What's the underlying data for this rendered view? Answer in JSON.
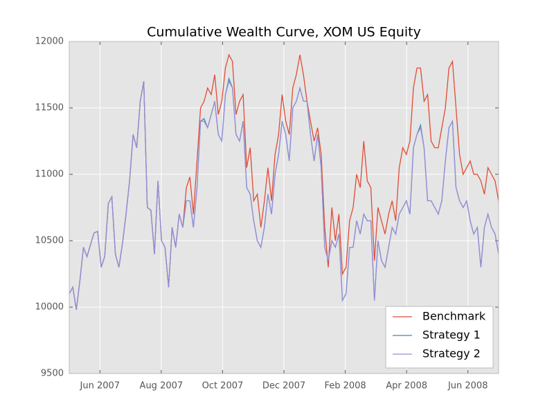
{
  "chart_data": {
    "type": "line",
    "title": "Cumulative Wealth Curve, XOM US Equity",
    "xlim": [
      "2007-05",
      "2008-07"
    ],
    "xticks": [
      {
        "value": "2007-06",
        "label": "Jun 2007"
      },
      {
        "value": "2007-08",
        "label": "Aug 2007"
      },
      {
        "value": "2007-10",
        "label": "Oct 2007"
      },
      {
        "value": "2007-12",
        "label": "Dec 2007"
      },
      {
        "value": "2008-02",
        "label": "Feb 2008"
      },
      {
        "value": "2008-04",
        "label": "Apr 2008"
      },
      {
        "value": "2008-06",
        "label": "Jun 2008"
      }
    ],
    "ylim": [
      9500,
      12000
    ],
    "yticks": [
      9500,
      10000,
      10500,
      11000,
      11500,
      12000
    ],
    "grid": true,
    "legend": "lower right",
    "series": [
      {
        "name": "Benchmark",
        "color": "#E24A33",
        "values": [
          10100,
          10150,
          9980,
          10200,
          10450,
          10380,
          10470,
          10560,
          10570,
          10300,
          10380,
          10780,
          10830,
          10400,
          10300,
          10480,
          10700,
          10950,
          11300,
          11200,
          11550,
          11700,
          10750,
          10730,
          10400,
          10950,
          10500,
          10450,
          10150,
          10600,
          10450,
          10700,
          10600,
          10900,
          10980,
          10700,
          11100,
          11500,
          11550,
          11650,
          11600,
          11750,
          11450,
          11550,
          11800,
          11900,
          11850,
          11450,
          11550,
          11600,
          11050,
          11200,
          10800,
          10850,
          10600,
          10800,
          11050,
          10800,
          11150,
          11300,
          11600,
          11400,
          11300,
          11650,
          11750,
          11900,
          11750,
          11550,
          11400,
          11250,
          11350,
          11150,
          10600,
          10300,
          10750,
          10500,
          10700,
          10250,
          10300,
          10650,
          10750,
          11000,
          10900,
          11250,
          10950,
          10900,
          10350,
          10750,
          10650,
          10550,
          10700,
          10800,
          10650,
          11050,
          11200,
          11150,
          11250,
          11650,
          11800,
          11800,
          11550,
          11600,
          11250,
          11200,
          11200,
          11350,
          11500,
          11800,
          11850,
          11500,
          11150,
          11000,
          11050,
          11100,
          11000,
          11000,
          10950,
          10850,
          11050,
          11000,
          10950,
          10800
        ]
      },
      {
        "name": "Strategy 1",
        "color": "#348ABD",
        "values": [
          10100,
          10150,
          9980,
          10200,
          10450,
          10380,
          10470,
          10560,
          10570,
          10300,
          10380,
          10780,
          10830,
          10400,
          10300,
          10480,
          10700,
          10950,
          11300,
          11200,
          11550,
          11700,
          10750,
          10730,
          10400,
          10950,
          10500,
          10450,
          10150,
          10600,
          10450,
          10700,
          10600,
          10800,
          10800,
          10600,
          10900,
          11400,
          11420,
          11350,
          11450,
          11550,
          11300,
          11250,
          11600,
          11720,
          11650,
          11300,
          11250,
          11400,
          10900,
          10850,
          10650,
          10500,
          10450,
          10600,
          10850,
          10700,
          11000,
          11150,
          11400,
          11300,
          11100,
          11500,
          11550,
          11650,
          11550,
          11550,
          11300,
          11100,
          11300,
          11050,
          10450,
          10350,
          10500,
          10450,
          10550,
          10050,
          10100,
          10450,
          10450,
          10650,
          10550,
          10700,
          10650,
          10650,
          10050,
          10500,
          10350,
          10300,
          10450,
          10600,
          10550,
          10700,
          10750,
          10800,
          10700,
          11200,
          11300,
          11370,
          11200,
          10800,
          10800,
          10750,
          10700,
          10800,
          11100,
          11350,
          11400,
          10900,
          10800,
          10750,
          10800,
          10650,
          10550,
          10600,
          10300,
          10600,
          10700,
          10600,
          10550,
          10400
        ]
      },
      {
        "name": "Strategy 2",
        "color": "#988ED5",
        "values": [
          10100,
          10150,
          9980,
          10200,
          10450,
          10380,
          10470,
          10560,
          10570,
          10300,
          10380,
          10780,
          10830,
          10400,
          10300,
          10480,
          10700,
          10950,
          11300,
          11200,
          11550,
          11700,
          10750,
          10730,
          10400,
          10950,
          10500,
          10450,
          10150,
          10600,
          10450,
          10700,
          10600,
          10800,
          10800,
          10600,
          10900,
          11400,
          11400,
          11350,
          11450,
          11550,
          11300,
          11250,
          11600,
          11700,
          11650,
          11300,
          11250,
          11400,
          10900,
          10850,
          10650,
          10500,
          10450,
          10600,
          10850,
          10700,
          11000,
          11150,
          11400,
          11300,
          11100,
          11500,
          11550,
          11650,
          11550,
          11550,
          11300,
          11100,
          11300,
          11050,
          10450,
          10350,
          10500,
          10450,
          10550,
          10050,
          10100,
          10450,
          10450,
          10650,
          10550,
          10700,
          10650,
          10650,
          10050,
          10500,
          10350,
          10300,
          10450,
          10600,
          10550,
          10700,
          10750,
          10800,
          10700,
          11200,
          11300,
          11350,
          11200,
          10800,
          10800,
          10750,
          10700,
          10800,
          11100,
          11350,
          11400,
          10900,
          10800,
          10750,
          10800,
          10650,
          10550,
          10600,
          10300,
          10600,
          10700,
          10600,
          10550,
          10400
        ]
      }
    ]
  }
}
